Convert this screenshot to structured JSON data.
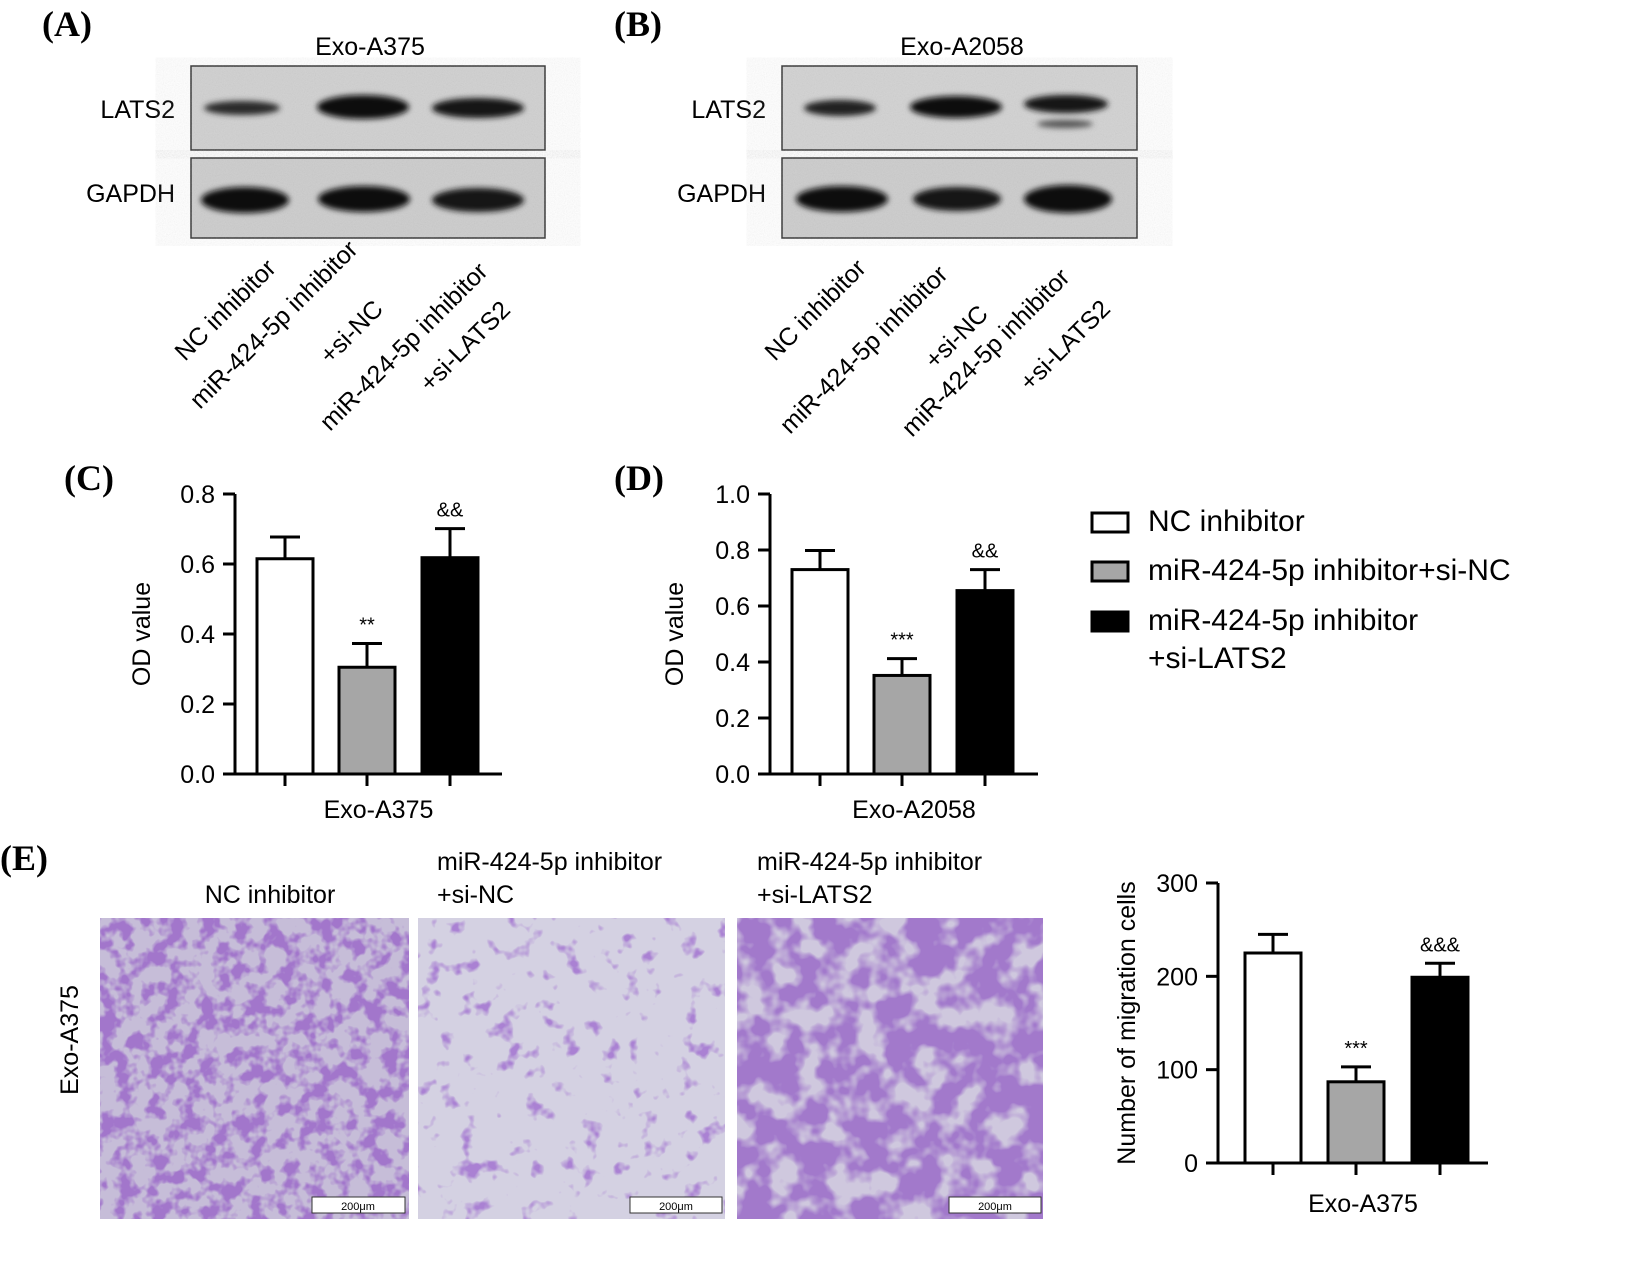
{
  "panels": {
    "A": {
      "letter": "(A)",
      "title": "Exo-A375",
      "bands": [
        "LATS2",
        "GAPDH"
      ],
      "lanes": [
        "NC inhibitor",
        "miR-424-5p inhibitor",
        "+si-NC",
        "miR-424-5p inhibitor",
        "+si-LATS2"
      ]
    },
    "B": {
      "letter": "(B)",
      "title": "Exo-A2058",
      "bands": [
        "LATS2",
        "GAPDH"
      ],
      "lanes": [
        "NC inhibitor",
        "miR-424-5p inhibitor",
        "+si-NC",
        "miR-424-5p inhibitor",
        "+si-LATS2"
      ]
    },
    "C": {
      "letter": "(C)"
    },
    "D": {
      "letter": "(D)"
    },
    "E": {
      "letter": "(E)",
      "row_label": "Exo-A375",
      "image_titles": [
        [
          "NC inhibitor"
        ],
        [
          "miR-424-5p inhibitor",
          "+si-NC"
        ],
        [
          "miR-424-5p inhibitor",
          "+si-LATS2"
        ]
      ],
      "scale_bar": "200μm"
    }
  },
  "legend": {
    "entries": [
      {
        "lines": [
          "NC inhibitor"
        ],
        "fill": "#ffffff"
      },
      {
        "lines": [
          "miR-424-5p inhibitor+si-NC"
        ],
        "fill": "#a6a6a6"
      },
      {
        "lines": [
          "miR-424-5p inhibitor",
          "+si-LATS2"
        ],
        "fill": "#000000"
      }
    ]
  },
  "chart_data": [
    {
      "panel": "C",
      "type": "bar",
      "categories": [
        "NC inhibitor",
        "miR-424-5p inhibitor+si-NC",
        "miR-424-5p inhibitor+si-LATS2"
      ],
      "values": [
        0.615,
        0.305,
        0.618
      ],
      "errors": [
        0.062,
        0.068,
        0.083
      ],
      "annotations": [
        "",
        "**",
        "&&"
      ],
      "colors": [
        "#ffffff",
        "#a6a6a6",
        "#000000"
      ],
      "xlabel": "Exo-A375",
      "ylabel": "OD value",
      "ylim": [
        0,
        0.8
      ],
      "yticks": [
        "0.0",
        "0.2",
        "0.4",
        "0.6",
        "0.8"
      ]
    },
    {
      "panel": "D",
      "type": "bar",
      "categories": [
        "NC inhibitor",
        "miR-424-5p inhibitor+si-NC",
        "miR-424-5p inhibitor+si-LATS2"
      ],
      "values": [
        0.73,
        0.352,
        0.655
      ],
      "errors": [
        0.068,
        0.06,
        0.075
      ],
      "annotations": [
        "",
        "***",
        "&&"
      ],
      "colors": [
        "#ffffff",
        "#a6a6a6",
        "#000000"
      ],
      "xlabel": "Exo-A2058",
      "ylabel": "OD value",
      "ylim": [
        0,
        1.0
      ],
      "yticks": [
        "0.0",
        "0.2",
        "0.4",
        "0.6",
        "0.8",
        "1.0"
      ]
    },
    {
      "panel": "E",
      "type": "bar",
      "categories": [
        "NC inhibitor",
        "miR-424-5p inhibitor+si-NC",
        "miR-424-5p inhibitor+si-LATS2"
      ],
      "values": [
        225,
        87,
        199
      ],
      "errors": [
        20,
        16,
        15
      ],
      "annotations": [
        "",
        "***",
        "&&&"
      ],
      "colors": [
        "#ffffff",
        "#a6a6a6",
        "#000000"
      ],
      "xlabel": "Exo-A375",
      "ylabel": "Number of migration cells",
      "ylim": [
        0,
        300
      ],
      "yticks": [
        "0",
        "100",
        "200",
        "300"
      ]
    }
  ]
}
